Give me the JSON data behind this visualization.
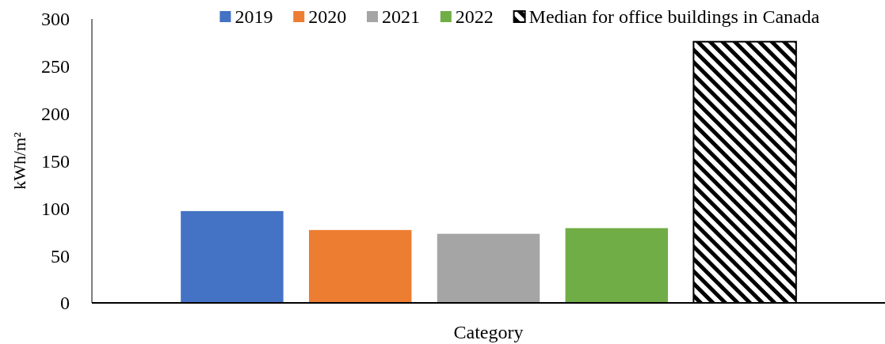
{
  "chart_data": {
    "type": "bar",
    "categories": [
      "Category"
    ],
    "ylabel": "kWh/m²",
    "ylim": [
      0,
      300
    ],
    "yticks": [
      0,
      50,
      100,
      150,
      200,
      250,
      300
    ],
    "grid": false,
    "legend": "top right",
    "series": [
      {
        "name": "2019",
        "color": "#4472c4",
        "values": [
          97
        ]
      },
      {
        "name": "2020",
        "color": "#ed7d31",
        "values": [
          77
        ]
      },
      {
        "name": "2021",
        "color": "#a5a5a5",
        "values": [
          73
        ]
      },
      {
        "name": "2022",
        "color": "#70ad47",
        "values": [
          79
        ]
      },
      {
        "name": "Median for office buildings in Canada",
        "color": "#000000",
        "values": [
          276
        ]
      }
    ]
  }
}
